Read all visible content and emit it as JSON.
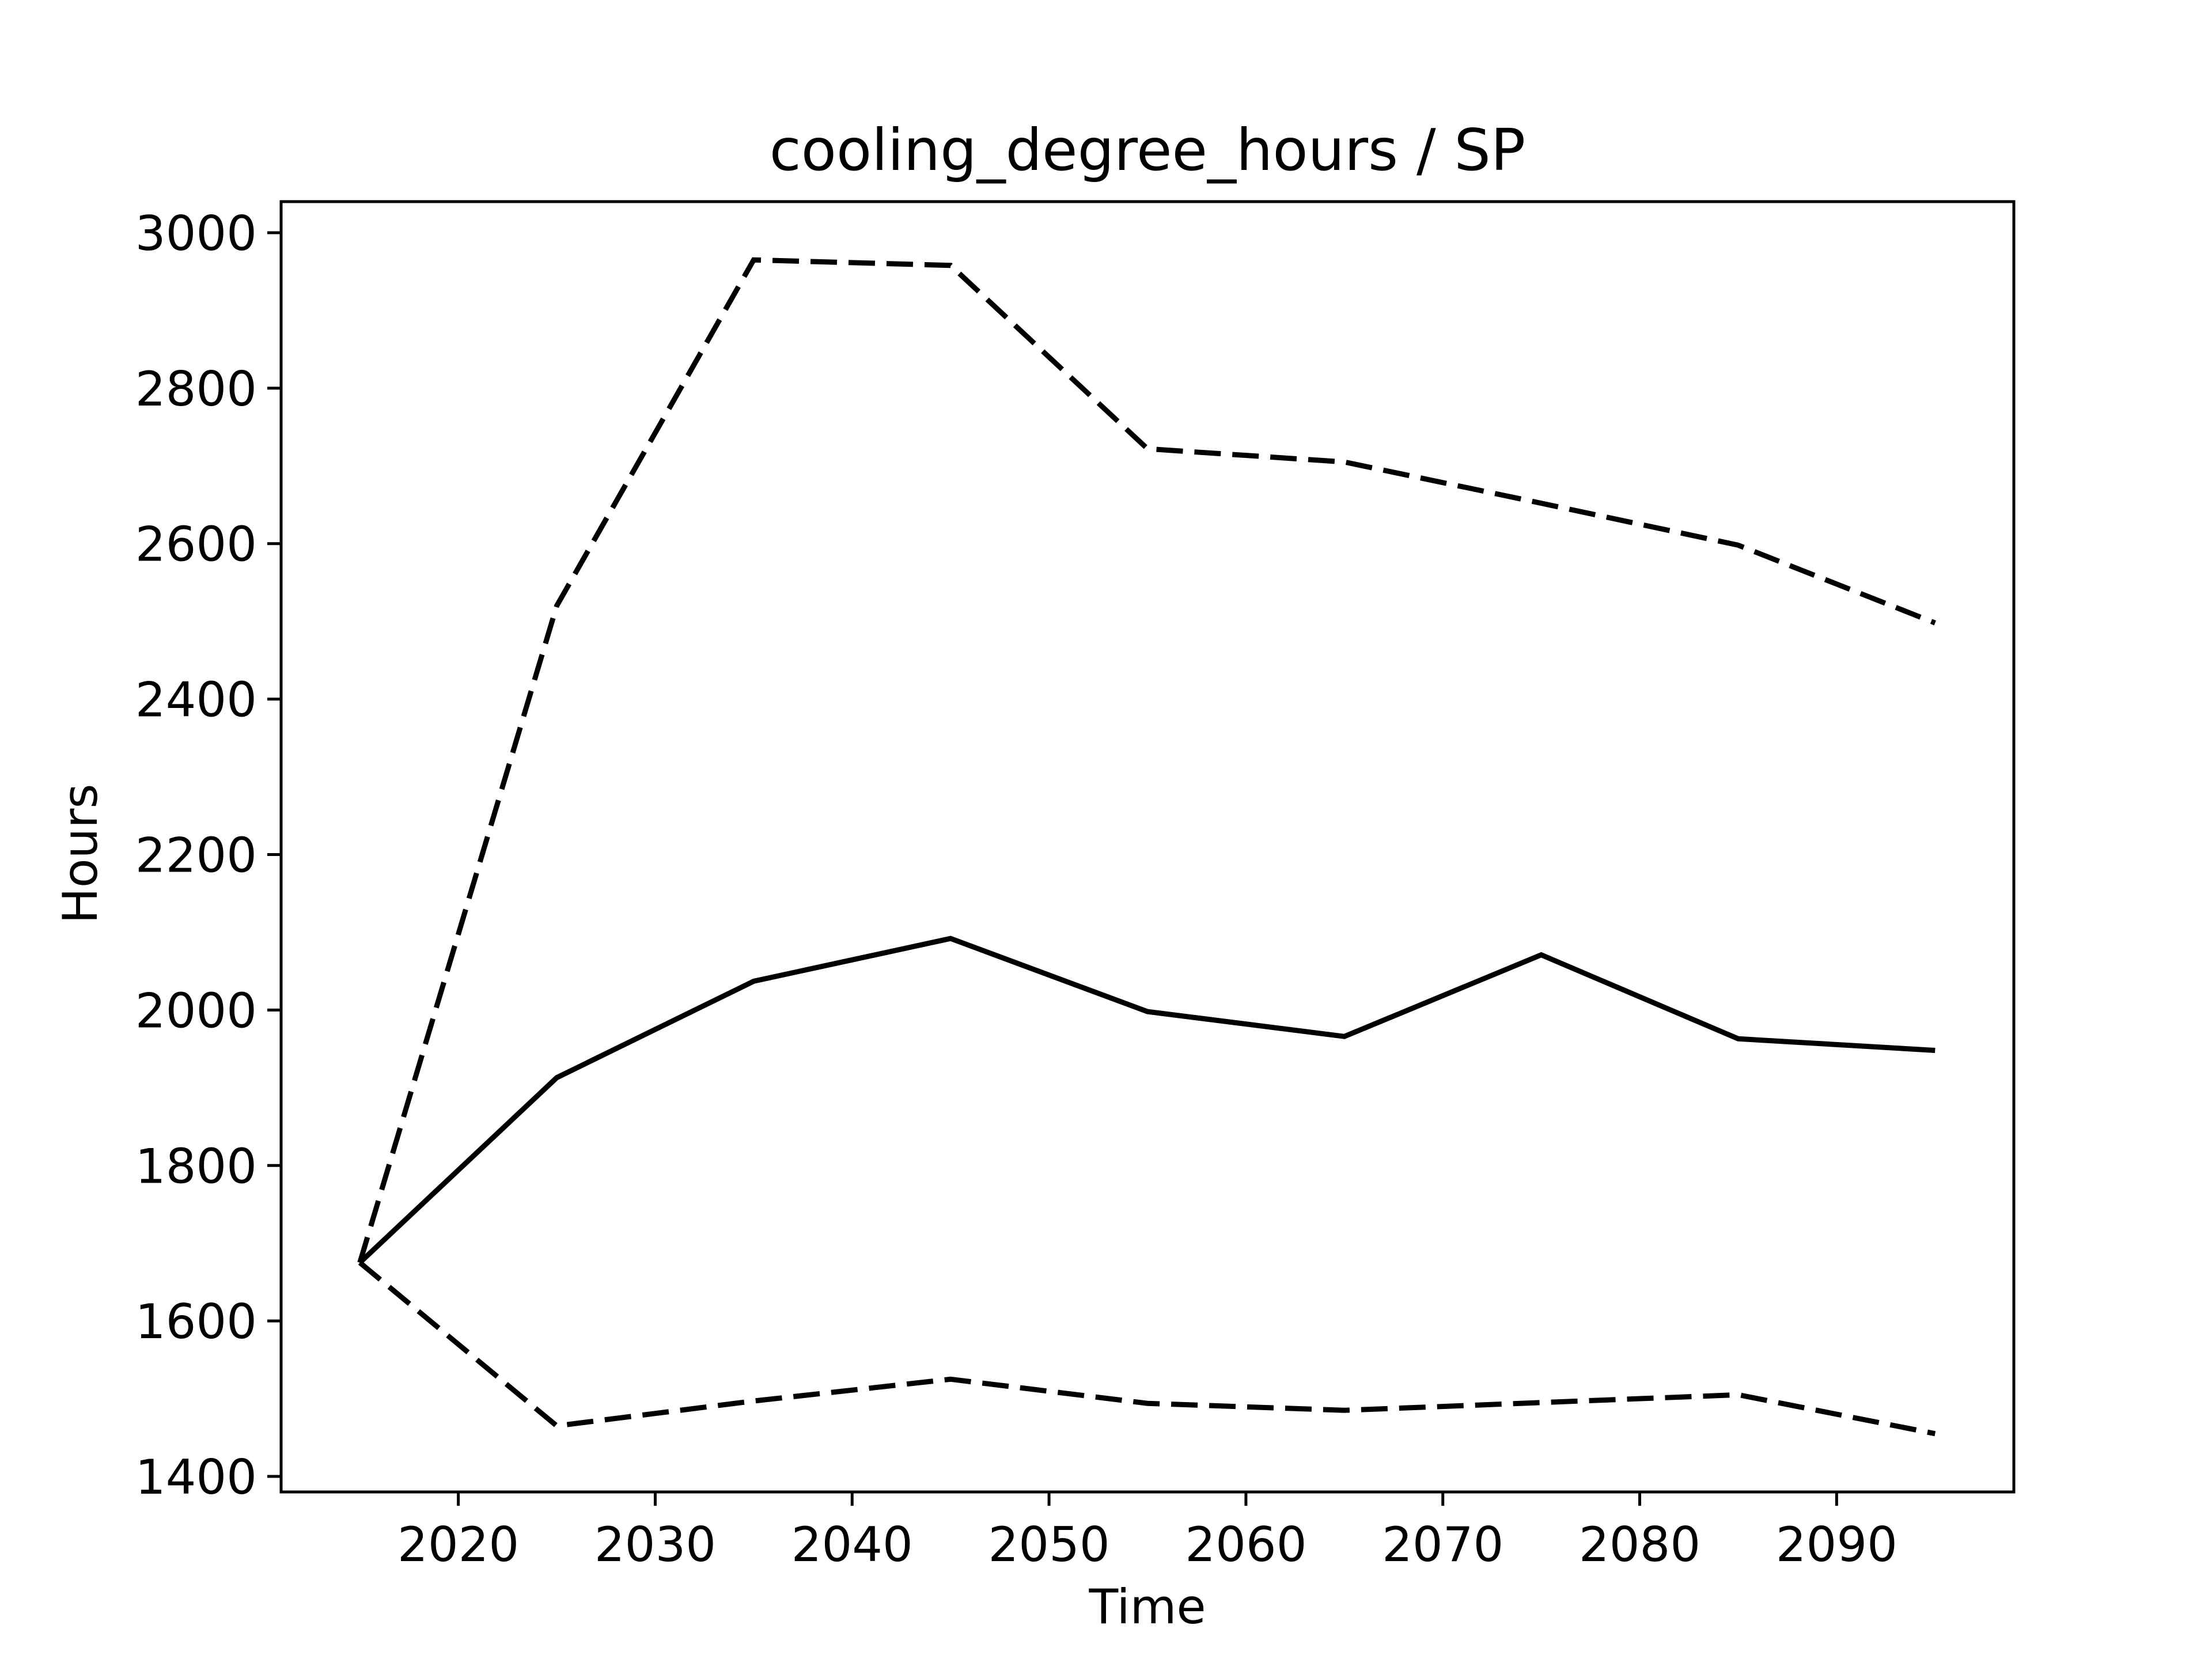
{
  "chart_data": {
    "type": "line",
    "title": "cooling_degree_hours / SP",
    "xlabel": "Time",
    "ylabel": "Hours",
    "xlim": [
      2011,
      2099
    ],
    "ylim": [
      1380,
      3040
    ],
    "xticks": [
      2020,
      2030,
      2040,
      2050,
      2060,
      2070,
      2080,
      2090
    ],
    "yticks": [
      1400,
      1600,
      1800,
      2000,
      2200,
      2400,
      2600,
      2800,
      3000
    ],
    "grid": false,
    "x": [
      2015,
      2025,
      2035,
      2045,
      2055,
      2065,
      2075,
      2085,
      2095
    ],
    "series": [
      {
        "line_style": "dashed",
        "color": "#000000",
        "values": [
          1675,
          2520,
          2965,
          2958,
          2722,
          2705,
          2652,
          2598,
          2498
        ]
      },
      {
        "line_style": "solid",
        "color": "#000000",
        "values": [
          1675,
          1913,
          2037,
          2092,
          1998,
          1966,
          2071,
          1963,
          1948
        ]
      },
      {
        "line_style": "dashed",
        "color": "#000000",
        "values": [
          1675,
          1465,
          1497,
          1525,
          1494,
          1485,
          1495,
          1505,
          1455
        ]
      }
    ]
  }
}
